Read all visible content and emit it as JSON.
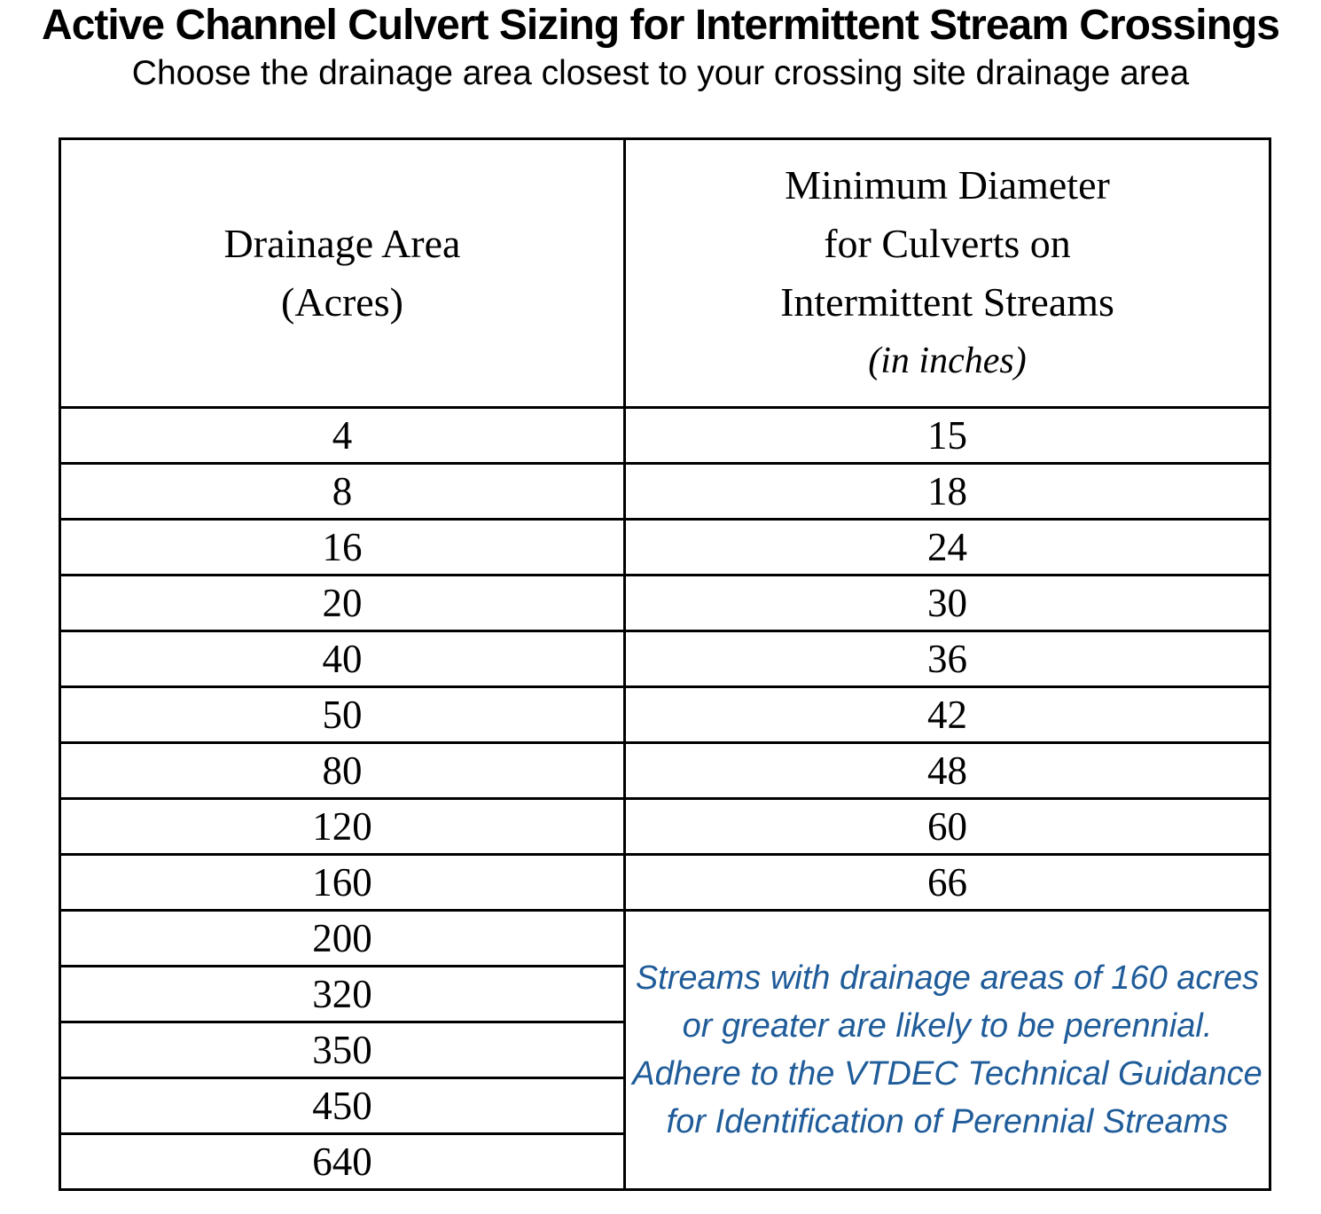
{
  "title": "Active Channel Culvert Sizing for Intermittent Stream Crossings",
  "subtitle": "Choose the drainage area closest to your crossing site drainage area",
  "table": {
    "headers": {
      "drainage_area": {
        "line1": "Drainage Area",
        "line2": "(Acres)"
      },
      "min_diameter": {
        "line1": "Minimum Diameter",
        "line2": "for Culverts on",
        "line3": "Intermittent Streams",
        "unit": "(in inches)"
      }
    },
    "rows": [
      {
        "area": "4",
        "diameter": "15"
      },
      {
        "area": "8",
        "diameter": "18"
      },
      {
        "area": "16",
        "diameter": "24"
      },
      {
        "area": "20",
        "diameter": "30"
      },
      {
        "area": "40",
        "diameter": "36"
      },
      {
        "area": "50",
        "diameter": "42"
      },
      {
        "area": "80",
        "diameter": "48"
      },
      {
        "area": "120",
        "diameter": "60"
      },
      {
        "area": "160",
        "diameter": "66"
      },
      {
        "area": "200"
      },
      {
        "area": "320"
      },
      {
        "area": "350"
      },
      {
        "area": "450"
      },
      {
        "area": "640"
      }
    ],
    "merged_note": {
      "text": "Streams with drainage areas of 160 acres or greater are likely to be perennial.  Adhere to the VTDEC Technical Guidance for Identification of Perennial Streams",
      "color": "#1F5C99"
    }
  }
}
